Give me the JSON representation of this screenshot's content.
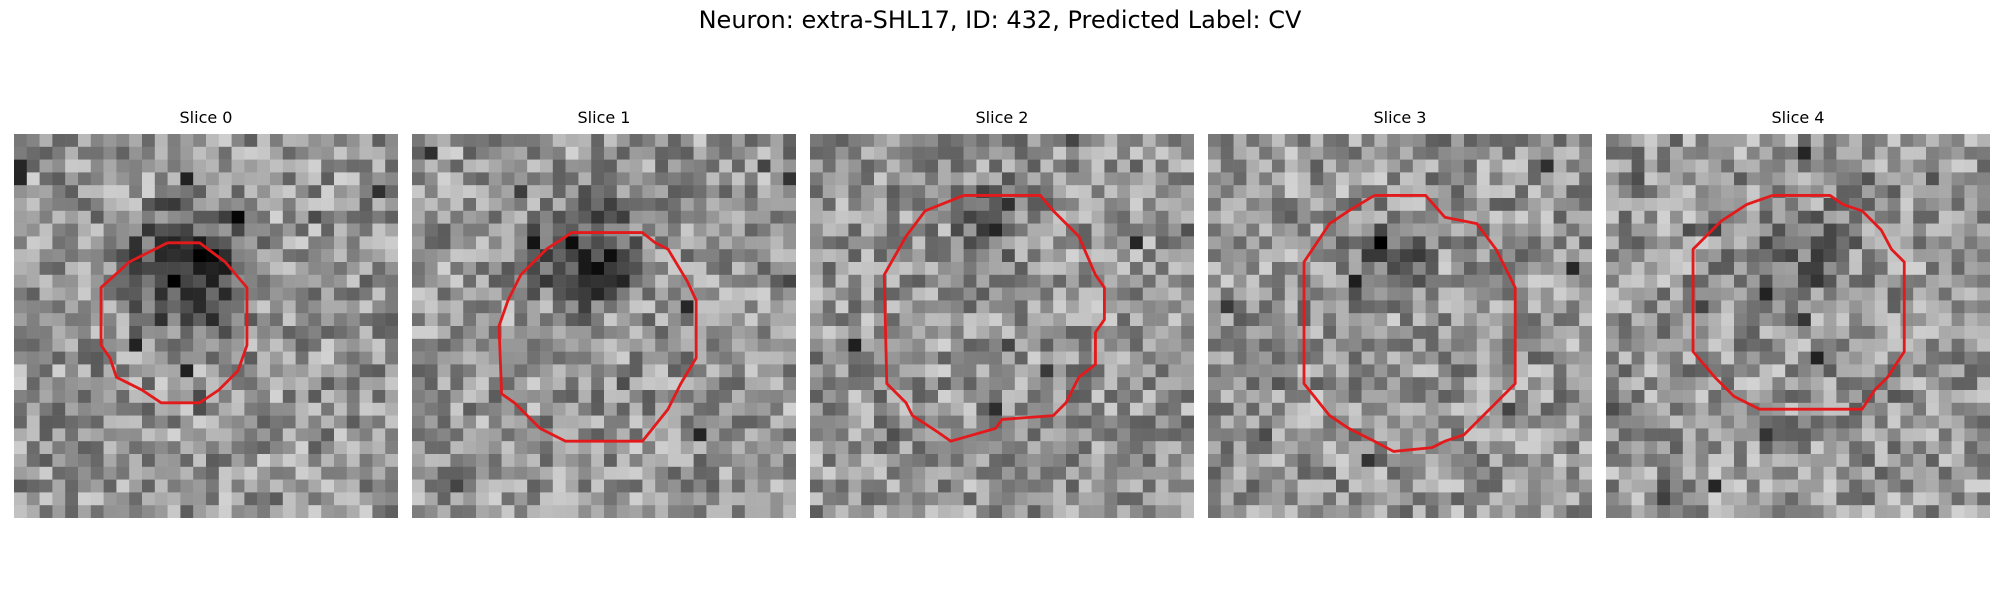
{
  "figure": {
    "title": "Neuron: extra-SHL17, ID: 432, Predicted Label: CV"
  },
  "colors": {
    "contour": "#e31a1c",
    "background": "#ffffff"
  },
  "image_grid": {
    "rows": 30,
    "cols": 30
  },
  "slices": [
    {
      "label": "Slice 0",
      "seed": 11,
      "dark_blob": {
        "cx": 13.5,
        "cy": 10.5,
        "r": 6.5,
        "strength": 110
      },
      "contour": [
        [
          12,
          8.5
        ],
        [
          14.5,
          8.5
        ],
        [
          16.5,
          10
        ],
        [
          18.2,
          12
        ],
        [
          18.2,
          16.5
        ],
        [
          17.5,
          18.5
        ],
        [
          16,
          20
        ],
        [
          14.5,
          21
        ],
        [
          11.5,
          21
        ],
        [
          10,
          20
        ],
        [
          8,
          19
        ],
        [
          7.5,
          17.5
        ],
        [
          6.8,
          16.5
        ],
        [
          6.8,
          12
        ],
        [
          9,
          10
        ],
        [
          12,
          8.5
        ]
      ]
    },
    {
      "label": "Slice 1",
      "seed": 23,
      "dark_blob": {
        "cx": 14,
        "cy": 9.5,
        "r": 5.5,
        "strength": 95
      },
      "contour": [
        [
          12.5,
          7.7
        ],
        [
          18,
          7.7
        ],
        [
          19,
          8.5
        ],
        [
          20,
          9
        ],
        [
          21.5,
          11.5
        ],
        [
          22.2,
          13
        ],
        [
          22.2,
          17.5
        ],
        [
          21,
          19.5
        ],
        [
          20,
          21.5
        ],
        [
          18,
          24
        ],
        [
          12,
          24
        ],
        [
          10,
          23
        ],
        [
          8,
          21
        ],
        [
          7,
          20.3
        ],
        [
          6.8,
          15
        ],
        [
          7.5,
          13
        ],
        [
          8.5,
          11
        ],
        [
          10.5,
          9
        ],
        [
          12.5,
          7.7
        ]
      ]
    },
    {
      "label": "Slice 2",
      "seed": 37,
      "dark_blob": {
        "cx": 14.5,
        "cy": 6.5,
        "r": 3.5,
        "strength": 60
      },
      "contour": [
        [
          12,
          4.8
        ],
        [
          18,
          4.8
        ],
        [
          19,
          6
        ],
        [
          21,
          8
        ],
        [
          22.3,
          11
        ],
        [
          23,
          12
        ],
        [
          23,
          14.5
        ],
        [
          22.3,
          15.5
        ],
        [
          22.3,
          18
        ],
        [
          21,
          19
        ],
        [
          20,
          21
        ],
        [
          19,
          22
        ],
        [
          15,
          22.3
        ],
        [
          14.5,
          23
        ],
        [
          11,
          24
        ],
        [
          10,
          23.3
        ],
        [
          8,
          22
        ],
        [
          7.5,
          21
        ],
        [
          6,
          19.5
        ],
        [
          5.8,
          11
        ],
        [
          7.5,
          8
        ],
        [
          9,
          6
        ],
        [
          12,
          4.8
        ]
      ]
    },
    {
      "label": "Slice 3",
      "seed": 53,
      "dark_blob": {
        "cx": 14,
        "cy": 10,
        "r": 4,
        "strength": 55
      },
      "contour": [
        [
          13,
          4.8
        ],
        [
          17,
          4.8
        ],
        [
          18.5,
          6.5
        ],
        [
          21,
          7
        ],
        [
          22.5,
          9
        ],
        [
          23.5,
          11
        ],
        [
          24,
          12
        ],
        [
          24,
          19.5
        ],
        [
          22,
          21.5
        ],
        [
          20,
          23.5
        ],
        [
          18.5,
          24
        ],
        [
          17.5,
          24.5
        ],
        [
          14.5,
          24.8
        ],
        [
          13,
          24
        ],
        [
          11,
          23
        ],
        [
          9.5,
          22
        ],
        [
          7.5,
          19.5
        ],
        [
          7.5,
          10
        ],
        [
          9.5,
          7
        ],
        [
          11,
          6
        ],
        [
          13,
          4.8
        ]
      ]
    },
    {
      "label": "Slice 4",
      "seed": 71,
      "dark_blob": {
        "cx": 15,
        "cy": 9,
        "r": 4.5,
        "strength": 45
      },
      "contour": [
        [
          13,
          4.8
        ],
        [
          17.5,
          4.8
        ],
        [
          18.5,
          5.5
        ],
        [
          20,
          6
        ],
        [
          21.5,
          7.5
        ],
        [
          22.3,
          9
        ],
        [
          23.3,
          10
        ],
        [
          23.3,
          17
        ],
        [
          22,
          19
        ],
        [
          21,
          20
        ],
        [
          20,
          21.5
        ],
        [
          17.5,
          21.5
        ],
        [
          12,
          21.5
        ],
        [
          10,
          20.5
        ],
        [
          8.5,
          19
        ],
        [
          6.8,
          17
        ],
        [
          6.8,
          9
        ],
        [
          9,
          6.8
        ],
        [
          11,
          5.5
        ],
        [
          13,
          4.8
        ]
      ]
    }
  ]
}
